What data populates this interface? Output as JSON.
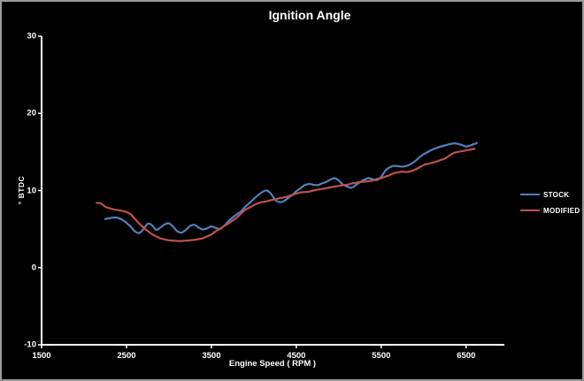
{
  "window": {
    "background": "#000000",
    "border_color": "#9a9a9a",
    "text_color": "#ffffff",
    "axis_color": "#ffffff"
  },
  "chart_data": {
    "type": "line",
    "title": "Ignition Angle",
    "xlabel": "Engine Speed ( RPM )",
    "ylabel": "° BTDC",
    "xlim": [
      1500,
      6950
    ],
    "ylim": [
      -10,
      30
    ],
    "x_ticks": [
      1500,
      2500,
      3500,
      4500,
      5500,
      6500
    ],
    "y_ticks": [
      30,
      20,
      10,
      0,
      -10
    ],
    "grid": false,
    "legend_position": "right",
    "series": [
      {
        "name": "STOCK",
        "color": "#4F81BD",
        "points": [
          [
            2250,
            6.3
          ],
          [
            2300,
            6.4
          ],
          [
            2350,
            6.5
          ],
          [
            2400,
            6.45
          ],
          [
            2450,
            6.2
          ],
          [
            2500,
            5.8
          ],
          [
            2550,
            5.3
          ],
          [
            2600,
            4.7
          ],
          [
            2650,
            4.5
          ],
          [
            2700,
            5.0
          ],
          [
            2750,
            5.7
          ],
          [
            2800,
            5.5
          ],
          [
            2850,
            4.9
          ],
          [
            2900,
            5.2
          ],
          [
            2950,
            5.6
          ],
          [
            3000,
            5.75
          ],
          [
            3050,
            5.3
          ],
          [
            3100,
            4.7
          ],
          [
            3150,
            4.55
          ],
          [
            3200,
            4.9
          ],
          [
            3250,
            5.4
          ],
          [
            3300,
            5.55
          ],
          [
            3350,
            5.2
          ],
          [
            3400,
            4.95
          ],
          [
            3450,
            5.1
          ],
          [
            3500,
            5.35
          ],
          [
            3550,
            5.15
          ],
          [
            3600,
            5.05
          ],
          [
            3650,
            5.4
          ],
          [
            3700,
            6.0
          ],
          [
            3750,
            6.5
          ],
          [
            3800,
            6.9
          ],
          [
            3850,
            7.3
          ],
          [
            3900,
            7.9
          ],
          [
            3950,
            8.4
          ],
          [
            4000,
            8.9
          ],
          [
            4050,
            9.4
          ],
          [
            4100,
            9.8
          ],
          [
            4150,
            10.0
          ],
          [
            4200,
            9.6
          ],
          [
            4250,
            8.8
          ],
          [
            4300,
            8.5
          ],
          [
            4350,
            8.6
          ],
          [
            4400,
            9.0
          ],
          [
            4450,
            9.4
          ],
          [
            4500,
            9.9
          ],
          [
            4550,
            10.3
          ],
          [
            4600,
            10.7
          ],
          [
            4650,
            10.85
          ],
          [
            4700,
            10.75
          ],
          [
            4750,
            10.7
          ],
          [
            4800,
            10.9
          ],
          [
            4850,
            11.1
          ],
          [
            4900,
            11.4
          ],
          [
            4950,
            11.6
          ],
          [
            5000,
            11.3
          ],
          [
            5050,
            10.75
          ],
          [
            5100,
            10.5
          ],
          [
            5150,
            10.35
          ],
          [
            5200,
            10.7
          ],
          [
            5250,
            11.1
          ],
          [
            5300,
            11.4
          ],
          [
            5350,
            11.6
          ],
          [
            5400,
            11.45
          ],
          [
            5450,
            11.35
          ],
          [
            5500,
            11.8
          ],
          [
            5550,
            12.6
          ],
          [
            5600,
            13.0
          ],
          [
            5650,
            13.2
          ],
          [
            5700,
            13.15
          ],
          [
            5750,
            13.1
          ],
          [
            5800,
            13.2
          ],
          [
            5850,
            13.45
          ],
          [
            5900,
            13.8
          ],
          [
            5950,
            14.3
          ],
          [
            6000,
            14.7
          ],
          [
            6050,
            15.0
          ],
          [
            6100,
            15.3
          ],
          [
            6150,
            15.5
          ],
          [
            6200,
            15.7
          ],
          [
            6250,
            15.85
          ],
          [
            6300,
            16.0
          ],
          [
            6350,
            16.1
          ],
          [
            6400,
            16.05
          ],
          [
            6450,
            15.9
          ],
          [
            6500,
            15.7
          ],
          [
            6550,
            15.85
          ],
          [
            6625,
            16.15
          ]
        ]
      },
      {
        "name": "MODIFIED",
        "color": "#C0504D",
        "points": [
          [
            2150,
            8.4
          ],
          [
            2200,
            8.3
          ],
          [
            2250,
            7.9
          ],
          [
            2300,
            7.7
          ],
          [
            2350,
            7.55
          ],
          [
            2400,
            7.45
          ],
          [
            2450,
            7.35
          ],
          [
            2500,
            7.2
          ],
          [
            2550,
            6.9
          ],
          [
            2600,
            6.3
          ],
          [
            2650,
            5.7
          ],
          [
            2700,
            5.2
          ],
          [
            2750,
            4.75
          ],
          [
            2800,
            4.35
          ],
          [
            2850,
            4.05
          ],
          [
            2900,
            3.8
          ],
          [
            2950,
            3.65
          ],
          [
            3000,
            3.55
          ],
          [
            3050,
            3.5
          ],
          [
            3100,
            3.45
          ],
          [
            3150,
            3.45
          ],
          [
            3200,
            3.5
          ],
          [
            3250,
            3.55
          ],
          [
            3300,
            3.6
          ],
          [
            3350,
            3.7
          ],
          [
            3400,
            3.8
          ],
          [
            3450,
            4.05
          ],
          [
            3500,
            4.3
          ],
          [
            3550,
            4.7
          ],
          [
            3600,
            5.0
          ],
          [
            3650,
            5.4
          ],
          [
            3700,
            5.7
          ],
          [
            3750,
            6.1
          ],
          [
            3800,
            6.5
          ],
          [
            3850,
            7.0
          ],
          [
            3900,
            7.5
          ],
          [
            3950,
            7.8
          ],
          [
            4000,
            8.1
          ],
          [
            4050,
            8.35
          ],
          [
            4100,
            8.5
          ],
          [
            4150,
            8.6
          ],
          [
            4200,
            8.75
          ],
          [
            4250,
            8.85
          ],
          [
            4300,
            9.0
          ],
          [
            4350,
            9.1
          ],
          [
            4400,
            9.25
          ],
          [
            4450,
            9.4
          ],
          [
            4500,
            9.6
          ],
          [
            4550,
            9.75
          ],
          [
            4600,
            9.8
          ],
          [
            4650,
            9.85
          ],
          [
            4700,
            10.0
          ],
          [
            4750,
            10.1
          ],
          [
            4800,
            10.2
          ],
          [
            4850,
            10.3
          ],
          [
            4900,
            10.4
          ],
          [
            4950,
            10.5
          ],
          [
            5000,
            10.6
          ],
          [
            5050,
            10.7
          ],
          [
            5100,
            10.75
          ],
          [
            5150,
            10.9
          ],
          [
            5200,
            11.0
          ],
          [
            5250,
            11.1
          ],
          [
            5300,
            11.15
          ],
          [
            5350,
            11.2
          ],
          [
            5400,
            11.3
          ],
          [
            5450,
            11.5
          ],
          [
            5500,
            11.6
          ],
          [
            5550,
            11.8
          ],
          [
            5600,
            12.0
          ],
          [
            5650,
            12.25
          ],
          [
            5700,
            12.35
          ],
          [
            5750,
            12.45
          ],
          [
            5800,
            12.4
          ],
          [
            5850,
            12.5
          ],
          [
            5900,
            12.7
          ],
          [
            5950,
            13.0
          ],
          [
            6000,
            13.3
          ],
          [
            6050,
            13.45
          ],
          [
            6100,
            13.6
          ],
          [
            6150,
            13.75
          ],
          [
            6200,
            13.95
          ],
          [
            6250,
            14.15
          ],
          [
            6300,
            14.5
          ],
          [
            6350,
            14.85
          ],
          [
            6400,
            15.0
          ],
          [
            6450,
            15.1
          ],
          [
            6500,
            15.2
          ],
          [
            6550,
            15.3
          ],
          [
            6600,
            15.4
          ]
        ]
      }
    ]
  },
  "legend": {
    "items": [
      {
        "label": "STOCK"
      },
      {
        "label": "MODIFIED"
      }
    ]
  }
}
